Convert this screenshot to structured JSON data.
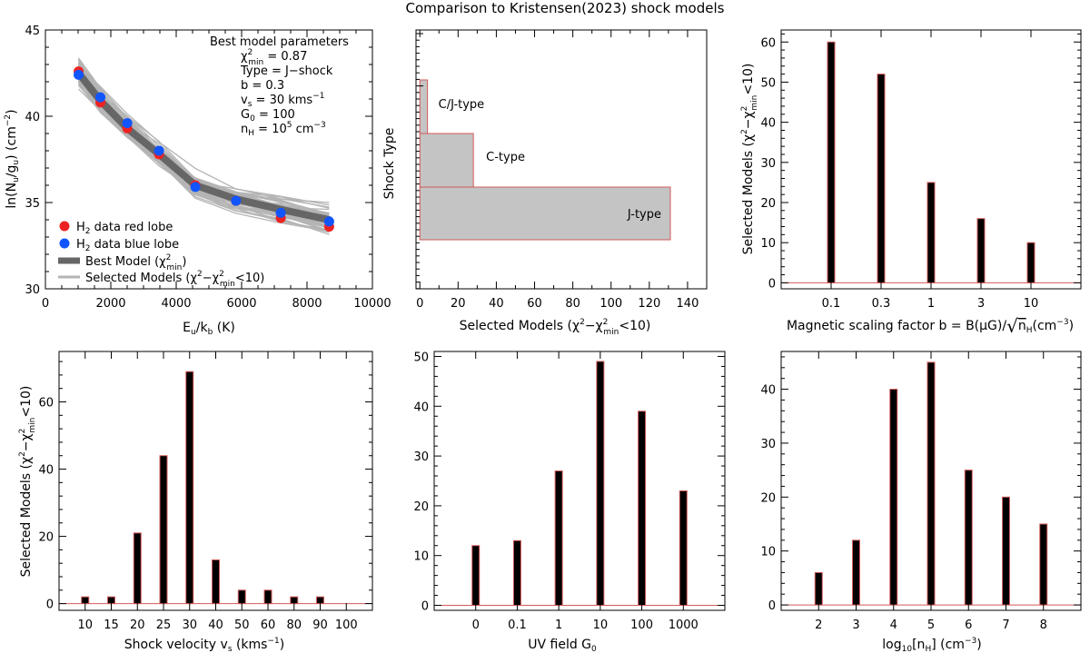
{
  "figure_title": "Comparison to Kristensen(2023) shock models",
  "colors": {
    "red_points": "#ee2222",
    "blue_points": "#1155ff",
    "best_model": "#666666",
    "selected_models": "#b4b4b4",
    "bar_fill": "#000000",
    "bar_edge": "#d45a5a",
    "shock_fill": "#c4c4c4",
    "shock_edge": "#d45a5a"
  },
  "chart_data": [
    {
      "id": "h2",
      "type": "scatter",
      "xlabel": "E_u/k_b (K)",
      "ylabel": "ln(N_u/g_u) (cm^-2)",
      "xlim": [
        0,
        10000
      ],
      "ylim": [
        30,
        45
      ],
      "xticks": [
        0,
        2000,
        4000,
        6000,
        8000,
        10000
      ],
      "yticks": [
        30,
        35,
        40,
        45
      ],
      "x": [
        1015,
        1682,
        2504,
        3474,
        4586,
        5829,
        7197,
        8677
      ],
      "series": [
        {
          "name": "H2 data red lobe",
          "values": [
            42.6,
            40.8,
            39.3,
            37.8,
            36.0,
            35.1,
            34.1,
            33.6
          ]
        },
        {
          "name": "H2 data blue lobe",
          "values": [
            42.4,
            41.1,
            39.6,
            38.0,
            35.9,
            35.1,
            34.4,
            33.9
          ]
        },
        {
          "name": "Best Model (χ²min)",
          "values": [
            42.5,
            40.9,
            39.3,
            37.8,
            36.0,
            35.2,
            34.6,
            34.0
          ]
        }
      ],
      "legend_position": "bottom-left",
      "legend": [
        {
          "label": "H2 data red lobe"
        },
        {
          "label": "H2 data blue lobe"
        },
        {
          "label": "Best Model (χ²min)"
        },
        {
          "label": "Selected Models (χ²−χ²min<10)"
        }
      ],
      "annotations": {
        "heading": "Best model parameters",
        "chi2": "χ²min = 0.87",
        "type": "Type = J-shock",
        "b": "b = 0.3",
        "vs": "vs = 30 kms⁻¹",
        "g0": "G0 = 100",
        "nh": "nH = 10⁵ cm⁻³"
      }
    },
    {
      "id": "shocktype",
      "type": "bar",
      "orientation": "horizontal",
      "categories": [
        "J-type",
        "C-type",
        "C/J-type"
      ],
      "values": [
        131,
        28,
        4
      ],
      "xlim": [
        -2,
        150
      ],
      "xticks": [
        0,
        20,
        40,
        60,
        80,
        100,
        120,
        140
      ],
      "xlabel": "Selected Models (χ²−χ²min<10)",
      "ylabel": "Shock Type"
    },
    {
      "id": "b",
      "type": "bar",
      "categories": [
        "0.1",
        "0.3",
        "1",
        "3",
        "10"
      ],
      "values": [
        60,
        52,
        25,
        16,
        10
      ],
      "ylim": [
        -1.5,
        63
      ],
      "yticks": [
        0,
        10,
        20,
        30,
        40,
        50,
        60
      ],
      "xlabel": "Magnetic scaling factor b = B(μG)/√nH(cm⁻³)",
      "ylabel": "Selected Models (χ²−χ²min<10)"
    },
    {
      "id": "vs",
      "type": "bar",
      "categories": [
        "10",
        "15",
        "20",
        "25",
        "30",
        "40",
        "50",
        "60",
        "80",
        "90"
      ],
      "tick_labels": [
        "10",
        "15",
        "20",
        "25",
        "30",
        "40",
        "50",
        "60",
        "80",
        "90",
        "100"
      ],
      "values": [
        2,
        2,
        21,
        44,
        69,
        13,
        4,
        4,
        2,
        2
      ],
      "ylim": [
        -2,
        75
      ],
      "yticks": [
        0,
        20,
        40,
        60
      ],
      "xlabel": "Shock velocity vs (kms⁻¹)",
      "ylabel": "Selected Models (χ²−χ²min<10)"
    },
    {
      "id": "g0",
      "type": "bar",
      "categories": [
        "0",
        "0.1",
        "1",
        "10",
        "100",
        "1000"
      ],
      "values": [
        12,
        13,
        27,
        49,
        39,
        23
      ],
      "ylim": [
        -1,
        51
      ],
      "yticks": [
        0,
        10,
        20,
        30,
        40,
        50
      ],
      "xlabel": "UV field G0",
      "ylabel": ""
    },
    {
      "id": "nh",
      "type": "bar",
      "categories": [
        "2",
        "3",
        "4",
        "5",
        "6",
        "7",
        "8"
      ],
      "values": [
        6,
        12,
        40,
        45,
        25,
        20,
        15
      ],
      "ylim": [
        -1,
        47
      ],
      "yticks": [
        0,
        10,
        20,
        30,
        40
      ],
      "xlabel": "log10[nH] (cm⁻³)",
      "ylabel": ""
    }
  ]
}
